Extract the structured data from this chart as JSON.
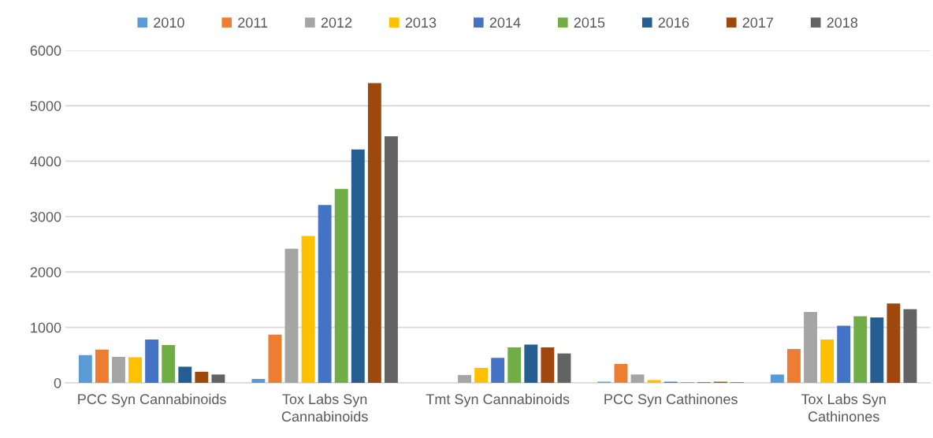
{
  "chart_data": {
    "type": "bar",
    "categories": [
      "PCC Syn Cannabinoids",
      "Tox Labs Syn\nCannabinoids",
      "Tmt Syn Cannabinoids",
      "PCC Syn Cathinones",
      "Tox Labs Syn\nCathinones"
    ],
    "series": [
      {
        "name": "2010",
        "color": "#5b9bd5",
        "values": [
          500,
          70,
          0,
          20,
          150
        ]
      },
      {
        "name": "2011",
        "color": "#ed7d31",
        "values": [
          600,
          870,
          0,
          340,
          610
        ]
      },
      {
        "name": "2012",
        "color": "#a5a5a5",
        "values": [
          470,
          2420,
          140,
          150,
          1280
        ]
      },
      {
        "name": "2013",
        "color": "#ffc000",
        "values": [
          460,
          2650,
          270,
          50,
          780
        ]
      },
      {
        "name": "2014",
        "color": "#4472c4",
        "values": [
          780,
          3210,
          450,
          20,
          1030
        ]
      },
      {
        "name": "2015",
        "color": "#70ad47",
        "values": [
          680,
          3500,
          640,
          10,
          1200
        ]
      },
      {
        "name": "2016",
        "color": "#255e91",
        "values": [
          290,
          4210,
          690,
          10,
          1180
        ]
      },
      {
        "name": "2017",
        "color": "#9e480e",
        "values": [
          200,
          5410,
          640,
          20,
          1430
        ]
      },
      {
        "name": "2018",
        "color": "#636363",
        "values": [
          150,
          4450,
          530,
          10,
          1330
        ]
      }
    ],
    "ylim": [
      0,
      6000
    ],
    "yticks": [
      0,
      1000,
      2000,
      3000,
      4000,
      5000,
      6000
    ],
    "grid": "y",
    "legend": "top"
  }
}
